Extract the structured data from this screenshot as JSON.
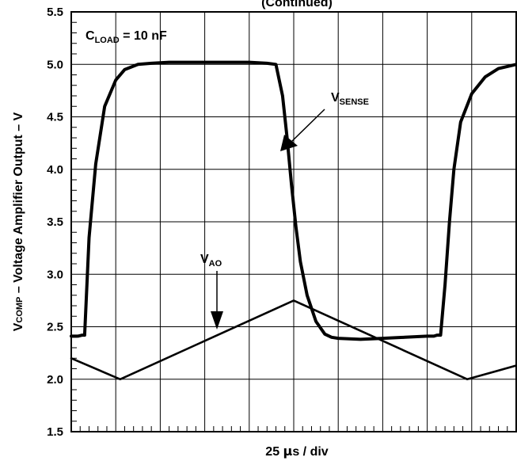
{
  "chart_data": {
    "type": "line",
    "title": "(Continued)",
    "xlabel": {
      "prefix": "25 ",
      "symbol": "µ",
      "suffix": "s / div"
    },
    "ylabel": {
      "main": "V",
      "sub": "COMP",
      "rest": " – Voltage Amplifier Output – V"
    },
    "ylim": [
      1.5,
      5.5
    ],
    "yticks": [
      "1.5",
      "2.0",
      "2.5",
      "3.0",
      "3.5",
      "4.0",
      "4.5",
      "5.0",
      "5.5"
    ],
    "x_divisions": 10,
    "x_unit_per_div": "25 µs",
    "grid": true,
    "annotations": {
      "cload": {
        "main": "C",
        "sub": "LOAD",
        "rest": " = 10 nF"
      },
      "vsense": {
        "main": "V",
        "sub": "SENSE"
      },
      "vao": {
        "main": "V",
        "sub": "AO"
      }
    },
    "series": [
      {
        "name": "V_SENSE",
        "x": [
          0,
          0.15,
          0.25,
          0.3,
          0.4,
          0.55,
          0.75,
          1.0,
          1.2,
          1.5,
          1.8,
          2.2,
          2.6,
          3.0,
          3.5,
          4.0,
          4.4,
          4.6,
          4.75,
          4.85,
          4.95,
          5.05,
          5.15,
          5.3,
          5.5,
          5.7,
          5.85,
          6.0,
          6.5,
          7.0,
          7.5,
          8.0,
          8.15,
          8.22,
          8.3,
          8.4,
          8.5,
          8.6,
          8.75,
          9.0,
          9.3,
          9.6,
          10.0
        ],
        "y": [
          2.41,
          2.41,
          2.42,
          2.42,
          3.35,
          4.05,
          4.6,
          4.85,
          4.95,
          5.0,
          5.01,
          5.02,
          5.02,
          5.02,
          5.02,
          5.02,
          5.01,
          5.0,
          4.7,
          4.3,
          3.85,
          3.45,
          3.12,
          2.8,
          2.55,
          2.43,
          2.4,
          2.39,
          2.38,
          2.39,
          2.4,
          2.41,
          2.41,
          2.42,
          2.42,
          2.9,
          3.5,
          4.0,
          4.45,
          4.72,
          4.88,
          4.96,
          5.0
        ]
      },
      {
        "name": "V_AO",
        "x": [
          0,
          1.1,
          5.0,
          8.9,
          10.0
        ],
        "y": [
          2.2,
          2.0,
          2.75,
          2.0,
          2.13
        ]
      }
    ]
  }
}
